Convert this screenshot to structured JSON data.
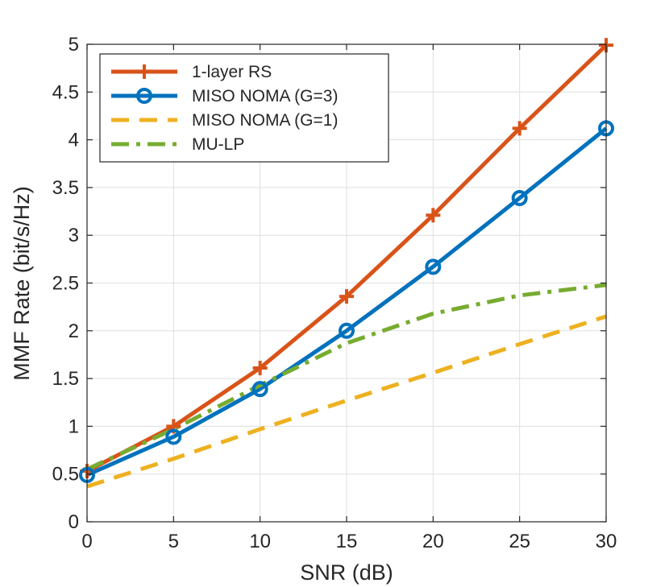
{
  "chart_data": {
    "type": "line",
    "title": "",
    "xlabel": "SNR (dB)",
    "ylabel": "MMF Rate (bit/s/Hz)",
    "xlim": [
      0,
      30
    ],
    "ylim": [
      0,
      5
    ],
    "xticks": [
      0,
      5,
      10,
      15,
      20,
      25,
      30
    ],
    "yticks": [
      0,
      0.5,
      1,
      1.5,
      2,
      2.5,
      3,
      3.5,
      4,
      4.5,
      5
    ],
    "xtick_labels": [
      "0",
      "5",
      "10",
      "15",
      "20",
      "25",
      "30"
    ],
    "ytick_labels": [
      "0",
      "0.5",
      "1",
      "1.5",
      "2",
      "2.5",
      "3",
      "3.5",
      "4",
      "4.5",
      "5"
    ],
    "grid": true,
    "legend_position": "top-left",
    "x": [
      0,
      5,
      10,
      15,
      20,
      25,
      30
    ],
    "series": [
      {
        "name": "1-layer RS",
        "color": "#d95319",
        "style": "solid",
        "marker": "plus",
        "values": [
          0.53,
          1.0,
          1.61,
          2.36,
          3.21,
          4.12,
          4.99
        ]
      },
      {
        "name": "MISO NOMA (G=3)",
        "color": "#0072bd",
        "style": "solid",
        "marker": "circle",
        "values": [
          0.49,
          0.89,
          1.39,
          2.0,
          2.67,
          3.39,
          4.12
        ]
      },
      {
        "name": "MISO NOMA (G=1)",
        "color": "#edb120",
        "style": "dashed",
        "marker": "none",
        "values": [
          0.37,
          0.66,
          0.97,
          1.27,
          1.56,
          1.86,
          2.15
        ]
      },
      {
        "name": "MU-LP",
        "color": "#77ac30",
        "style": "dashdot",
        "marker": "none",
        "values": [
          0.55,
          0.97,
          1.43,
          1.87,
          2.18,
          2.37,
          2.48
        ]
      }
    ]
  }
}
